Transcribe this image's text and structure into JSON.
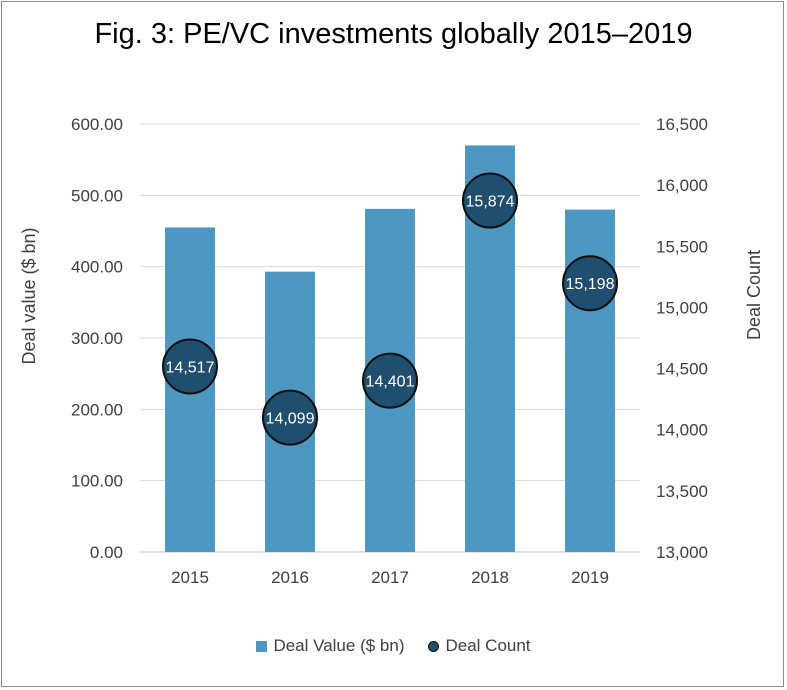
{
  "chart_data": {
    "type": "bar",
    "title": "Fig. 3: PE/VC investments globally 2015–2019",
    "categories": [
      "2015",
      "2016",
      "2017",
      "2018",
      "2019"
    ],
    "series": [
      {
        "name": "Deal Value ($ bn)",
        "type": "bar",
        "axis": "left",
        "color": "#4d97c2",
        "values": [
          455,
          393,
          481,
          570,
          480
        ]
      },
      {
        "name": "Deal Count",
        "type": "scatter",
        "axis": "right",
        "color": "#1f4e6e",
        "values": [
          14517,
          14099,
          14401,
          15874,
          15198
        ],
        "labels": [
          "14,517",
          "14,099",
          "14,401",
          "15,874",
          "15,198"
        ]
      }
    ],
    "ylabel": "Deal value  ($ bn)",
    "ylim": [
      0,
      600
    ],
    "yticks": [
      "0.00",
      "100.00",
      "200.00",
      "300.00",
      "400.00",
      "500.00",
      "600.00"
    ],
    "y2label": "Deal Count",
    "y2lim": [
      13000,
      16500
    ],
    "y2ticks": [
      "13,000",
      "13,500",
      "14,000",
      "14,500",
      "15,000",
      "15,500",
      "16,000",
      "16,500"
    ],
    "grid": true,
    "legend_position": "bottom"
  }
}
